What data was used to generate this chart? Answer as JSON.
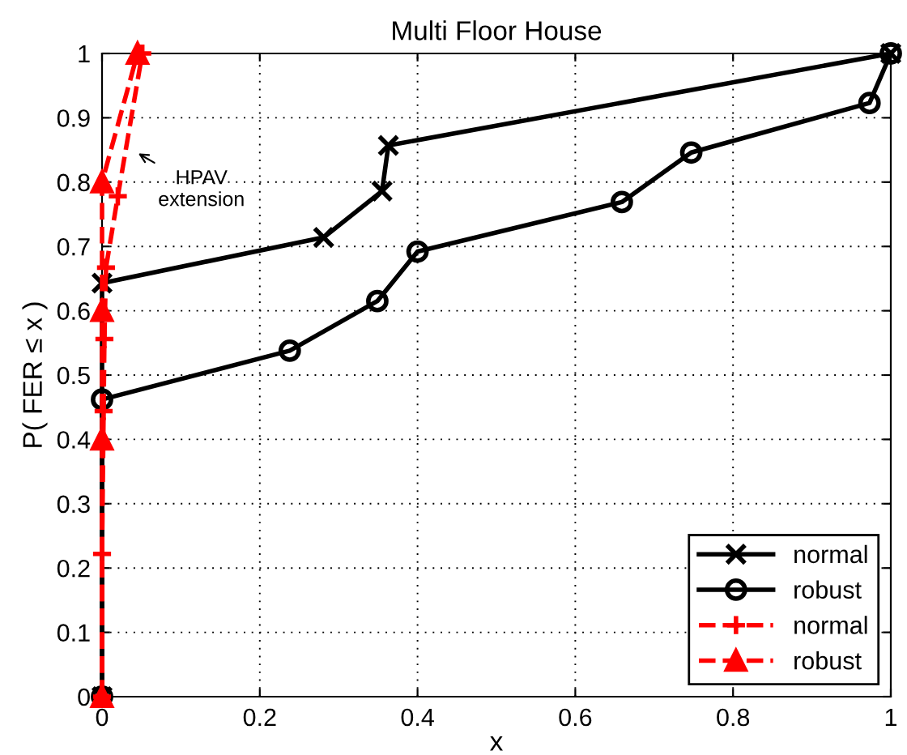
{
  "chart_data": {
    "type": "line",
    "title": "Multi Floor House",
    "xlabel": "x",
    "ylabel": "P( FER ≤ x )",
    "series": [
      {
        "name": "normal",
        "color": "#000000",
        "marker": "cross",
        "line_style": "solid",
        "x": [
          0,
          0,
          0.281,
          0.355,
          0.363,
          1
        ],
        "values": [
          0,
          0.643,
          0.714,
          0.786,
          0.857,
          1
        ]
      },
      {
        "name": "robust",
        "color": "#000000",
        "marker": "circle",
        "line_style": "solid",
        "x": [
          0,
          0,
          0.238,
          0.349,
          0.4,
          0.659,
          0.747,
          0.973,
          1
        ],
        "values": [
          0,
          0.462,
          0.538,
          0.615,
          0.692,
          0.769,
          0.846,
          0.923,
          1
        ]
      },
      {
        "name": "normal",
        "color": "#ff0000",
        "marker": "cross",
        "line_style": "dashed",
        "x": [
          0,
          0,
          0.002,
          0.003,
          0.005,
          0.02,
          0.051
        ],
        "values": [
          0,
          0.222,
          0.444,
          0.556,
          0.667,
          0.778,
          1
        ]
      },
      {
        "name": "robust",
        "color": "#ff0000",
        "marker": "triangle",
        "line_style": "dashed",
        "x": [
          0,
          0,
          0,
          0,
          0.045
        ],
        "values": [
          0,
          0.4,
          0.6,
          0.8,
          1
        ]
      }
    ],
    "annotations": [
      {
        "text": "HPAV\nextension",
        "x": 0.041,
        "y": 0.848
      }
    ],
    "xlim": [
      0,
      1
    ],
    "ylim": [
      0,
      1
    ],
    "xticks": [
      0,
      0.2,
      0.4,
      0.6,
      0.8,
      1
    ],
    "yticks": [
      0,
      0.1,
      0.2,
      0.3,
      0.4,
      0.5,
      0.6,
      0.7,
      0.8,
      0.9,
      1
    ],
    "grid": true,
    "legend": "bottom right"
  }
}
